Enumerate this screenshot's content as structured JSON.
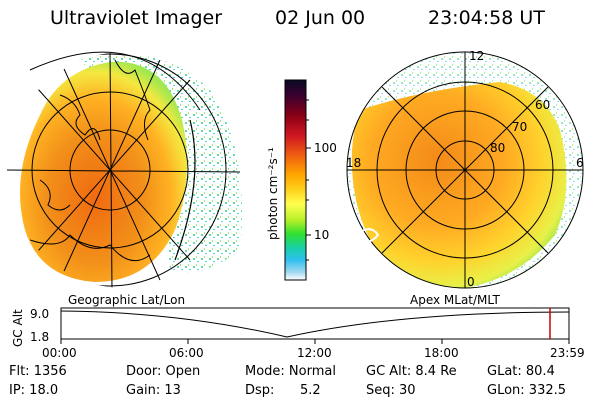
{
  "header": {
    "instrument": "Ultraviolet Imager",
    "date": "02 Jun 00",
    "time": "23:04:58 UT"
  },
  "colorbar": {
    "unit_label": "photon cm⁻²s⁻¹",
    "ticks": [
      "100",
      "10"
    ],
    "scale": "log",
    "colors": [
      "#0a0a24",
      "#3b0030",
      "#8b0014",
      "#d01822",
      "#f06010",
      "#ffa400",
      "#ffd21c",
      "#ffff50",
      "#b8f028",
      "#30e030",
      "#18d0a8",
      "#30c0f0",
      "#a0d8f0",
      "#ffffff"
    ]
  },
  "geographic_panel": {
    "label": "Geographic Lat/Lon"
  },
  "polar_panel": {
    "label": "Apex MLat/MLT",
    "mlt_labels": [
      "12",
      "18",
      "6",
      "0"
    ],
    "lat_labels": [
      "60",
      "70",
      "80"
    ]
  },
  "altitude_plot": {
    "ylabel": "GC Alt",
    "yticks": [
      "9.0",
      "1.8"
    ],
    "xticks": [
      "00:00",
      "06:00",
      "12:00",
      "18:00",
      "23:59"
    ],
    "marker_time": "23:04",
    "marker_color": "#cc0000"
  },
  "info": {
    "flt": "Flt: 1356",
    "door": "Door: Open",
    "mode": "Mode: Normal",
    "gc_alt": "GC Alt: 8.4 Re",
    "glat": "GLat:  80.4",
    "ip": "IP: 18.0",
    "gain": "Gain: 13",
    "dsp_label": "Dsp:",
    "dsp_value": "5.2",
    "seq": "Seq: 30",
    "glon": "GLon: 332.5"
  }
}
